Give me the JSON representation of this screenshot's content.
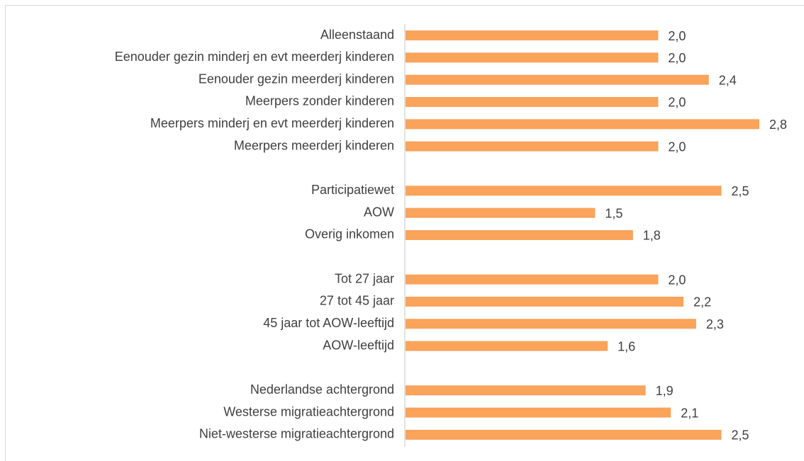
{
  "chart_data": {
    "type": "bar",
    "orientation": "horizontal",
    "color": "#f9a35b",
    "categories": [
      "Alleenstaand",
      "Eenouder gezin minderj en evt meerderj kinderen",
      "Eenouder gezin meerderj kinderen",
      "Meerpers zonder kinderen",
      "Meerpers minderj en evt meerderj kinderen",
      "Meerpers meerderj kinderen",
      null,
      "Participatiewet",
      "AOW",
      "Overig inkomen",
      null,
      "Tot 27 jaar",
      "27 tot 45 jaar",
      "45 jaar tot AOW-leeftijd",
      "AOW-leeftijd",
      null,
      "Nederlandse achtergrond",
      "Westerse migratieachtergrond",
      "Niet-westerse migratieachtergrond"
    ],
    "values": [
      2.0,
      2.0,
      2.4,
      2.0,
      2.8,
      2.0,
      null,
      2.5,
      1.5,
      1.8,
      null,
      2.0,
      2.2,
      2.3,
      1.6,
      null,
      1.9,
      2.1,
      2.5
    ],
    "value_labels": [
      "2,0",
      "2,0",
      "2,4",
      "2,0",
      "2,8",
      "2,0",
      null,
      "2,5",
      "1,5",
      "1,8",
      null,
      "2,0",
      "2,2",
      "2,3",
      "1,6",
      null,
      "1,9",
      "2,1",
      "2,5"
    ]
  }
}
